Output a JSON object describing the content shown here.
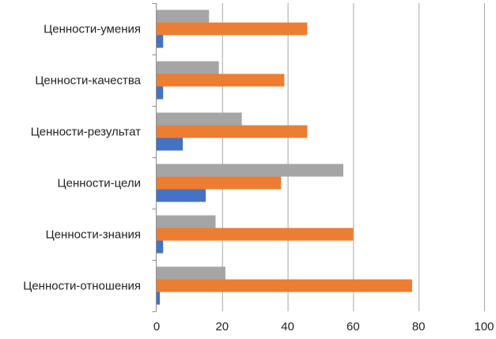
{
  "chart_data": {
    "type": "bar",
    "orientation": "horizontal",
    "categories": [
      "Ценности-умения",
      "Ценности-качества",
      "Ценности-результат",
      "Ценности-цели",
      "Ценности-знания",
      "Ценности-отношения"
    ],
    "series": [
      {
        "color": "#a5a5a5",
        "values": [
          16,
          19,
          26,
          57,
          18,
          21
        ]
      },
      {
        "color": "#ed7d31",
        "values": [
          46,
          39,
          46,
          38,
          60,
          78
        ]
      },
      {
        "color": "#4472c4",
        "values": [
          2,
          2,
          8,
          15,
          2,
          1
        ]
      }
    ],
    "xlim": [
      0,
      100
    ],
    "xticks": [
      "0",
      "20",
      "40",
      "60",
      "80",
      "100"
    ],
    "title": "",
    "xlabel": "",
    "ylabel": "",
    "grid": "vertical",
    "legend": "none"
  }
}
